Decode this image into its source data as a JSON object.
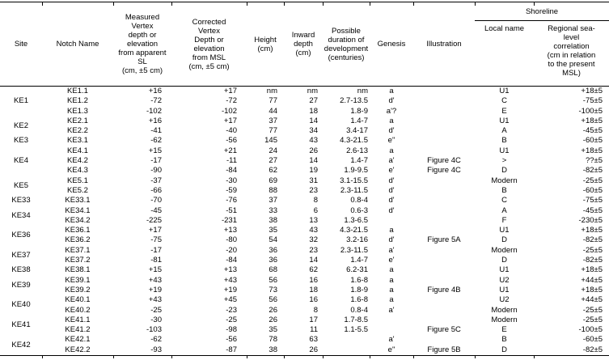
{
  "table": {
    "headers": {
      "site": "Site",
      "notch_name": "Notch Name",
      "measured": "Measured\nVertex\ndepth or\nelevation\nfrom apparent\nSL\n(cm, ±5 cm)",
      "corrected": "Corrected\nVertex\nDepth or\nelevation\nfrom MSL\n(cm, ±5 cm)",
      "height": "Height\n(cm)",
      "inward": "Inward\ndepth\n(cm)",
      "duration": "Possible\nduration of\ndevelopment\n(centuries)",
      "genesis": "Genesis",
      "illustration": "Illustration",
      "shoreline": "Shoreline",
      "local_name": "Local name",
      "regional": "Regional sea-\nlevel\ncorrelation\n(cm in relation\nto the present\nMSL)"
    },
    "groups": [
      {
        "site": "KE1",
        "rows": [
          {
            "notch": "KE1.1",
            "measured": "+16",
            "corrected": "+17",
            "height": "nm",
            "inward": "nm",
            "duration": "nm",
            "genesis": "a",
            "illustration": "",
            "local": "U1",
            "regional": "+18±5"
          },
          {
            "notch": "KE1.2",
            "measured": "-72",
            "corrected": "-72",
            "height": "77",
            "inward": "27",
            "duration": "2.7-13.5",
            "genesis": "d'",
            "illustration": "",
            "local": "C",
            "regional": "-75±5"
          },
          {
            "notch": "KE1.3",
            "measured": "-102",
            "corrected": "-102",
            "height": "44",
            "inward": "18",
            "duration": "1.8-9",
            "genesis": "a'?",
            "illustration": "",
            "local": "E",
            "regional": "-100±5"
          }
        ]
      },
      {
        "site": "KE2",
        "rows": [
          {
            "notch": "KE2.1",
            "measured": "+16",
            "corrected": "+17",
            "height": "37",
            "inward": "14",
            "duration": "1.4-7",
            "genesis": "a",
            "illustration": "",
            "local": "U1",
            "regional": "+18±5"
          },
          {
            "notch": "KE2.2",
            "measured": "-41",
            "corrected": "-40",
            "height": "77",
            "inward": "34",
            "duration": "3.4-17",
            "genesis": "d'",
            "illustration": "",
            "local": "A",
            "regional": "-45±5"
          }
        ]
      },
      {
        "site": "KE3",
        "rows": [
          {
            "notch": "KE3.1",
            "measured": "-62",
            "corrected": "-56",
            "height": "145",
            "inward": "43",
            "duration": "4.3-21.5",
            "genesis": "e\"",
            "illustration": "",
            "local": "B",
            "regional": "-60±5"
          }
        ]
      },
      {
        "site": "KE4",
        "rows": [
          {
            "notch": "KE4.1",
            "measured": "+15",
            "corrected": "+21",
            "height": "24",
            "inward": "26",
            "duration": "2.6-13",
            "genesis": "a",
            "illustration": "",
            "local": "U1",
            "regional": "+18±5"
          },
          {
            "notch": "KE4.2",
            "measured": "-17",
            "corrected": "-11",
            "height": "27",
            "inward": "14",
            "duration": "1.4-7",
            "genesis": "a'",
            "illustration": "Figure 4C",
            "local": ">",
            "regional": "??±5"
          },
          {
            "notch": "KE4.3",
            "measured": "-90",
            "corrected": "-84",
            "height": "62",
            "inward": "19",
            "duration": "1.9-9.5",
            "genesis": "e'",
            "illustration": "Figure 4C",
            "local": "D",
            "regional": "-82±5"
          }
        ]
      },
      {
        "site": "KE5",
        "rows": [
          {
            "notch": "KE5.1",
            "measured": "-37",
            "corrected": "-30",
            "height": "69",
            "inward": "31",
            "duration": "3.1-15.5",
            "genesis": "d'",
            "illustration": "",
            "local": "Modern",
            "regional": "-25±5"
          },
          {
            "notch": "KE5.2",
            "measured": "-66",
            "corrected": "-59",
            "height": "88",
            "inward": "23",
            "duration": "2.3-11.5",
            "genesis": "d'",
            "illustration": "",
            "local": "B",
            "regional": "-60±5"
          }
        ]
      },
      {
        "site": "KE33",
        "rows": [
          {
            "notch": "KE33.1",
            "measured": "-70",
            "corrected": "-76",
            "height": "37",
            "inward": "8",
            "duration": "0.8-4",
            "genesis": "d'",
            "illustration": "",
            "local": "C",
            "regional": "-75±5"
          }
        ]
      },
      {
        "site": "KE34",
        "rows": [
          {
            "notch": "KE34.1",
            "measured": "-45",
            "corrected": "-51",
            "height": "33",
            "inward": "6",
            "duration": "0.6-3",
            "genesis": "d'",
            "illustration": "",
            "local": "A",
            "regional": "-45±5"
          },
          {
            "notch": "KE34.2",
            "measured": "-225",
            "corrected": "-231",
            "height": "38",
            "inward": "13",
            "duration": "1.3-6.5",
            "genesis": "",
            "illustration": "",
            "local": "F",
            "regional": "-230±5"
          }
        ]
      },
      {
        "site": "KE36",
        "rows": [
          {
            "notch": "KE36.1",
            "measured": "+17",
            "corrected": "+13",
            "height": "35",
            "inward": "43",
            "duration": "4.3-21.5",
            "genesis": "a",
            "illustration": "",
            "local": "U1",
            "regional": "+18±5"
          },
          {
            "notch": "KE36.2",
            "measured": "-75",
            "corrected": "-80",
            "height": "54",
            "inward": "32",
            "duration": "3.2-16",
            "genesis": "d'",
            "illustration": "Figure 5A",
            "local": "D",
            "regional": "-82±5"
          }
        ]
      },
      {
        "site": "KE37",
        "rows": [
          {
            "notch": "KE37.1",
            "measured": "-17",
            "corrected": "-20",
            "height": "36",
            "inward": "23",
            "duration": "2.3-11.5",
            "genesis": "a'",
            "illustration": "",
            "local": "Modern",
            "regional": "-25±5"
          },
          {
            "notch": "KE37.2",
            "measured": "-81",
            "corrected": "-84",
            "height": "36",
            "inward": "14",
            "duration": "1.4-7",
            "genesis": "e'",
            "illustration": "",
            "local": "D",
            "regional": "-82±5"
          }
        ]
      },
      {
        "site": "KE38",
        "rows": [
          {
            "notch": "KE38.1",
            "measured": "+15",
            "corrected": "+13",
            "height": "68",
            "inward": "62",
            "duration": "6.2-31",
            "genesis": "a",
            "illustration": "",
            "local": "U1",
            "regional": "+18±5"
          }
        ]
      },
      {
        "site": "KE39",
        "rows": [
          {
            "notch": "KE39.1",
            "measured": "+43",
            "corrected": "+43",
            "height": "56",
            "inward": "16",
            "duration": "1.6-8",
            "genesis": "a",
            "illustration": "",
            "local": "U2",
            "regional": "+44±5"
          },
          {
            "notch": "KE39.2",
            "measured": "+19",
            "corrected": "+19",
            "height": "73",
            "inward": "18",
            "duration": "1.8-9",
            "genesis": "a",
            "illustration": "Figure 4B",
            "local": "U1",
            "regional": "+18±5"
          }
        ]
      },
      {
        "site": "KE40",
        "rows": [
          {
            "notch": "KE40.1",
            "measured": "+43",
            "corrected": "+45",
            "height": "56",
            "inward": "16",
            "duration": "1.6-8",
            "genesis": "a",
            "illustration": "",
            "local": "U2",
            "regional": "+44±5"
          },
          {
            "notch": "KE40.2",
            "measured": "-25",
            "corrected": "-23",
            "height": "26",
            "inward": "8",
            "duration": "0.8-4",
            "genesis": "a'",
            "illustration": "",
            "local": "Modern",
            "regional": "-25±5"
          }
        ]
      },
      {
        "site": "KE41",
        "rows": [
          {
            "notch": "KE41.1",
            "measured": "-30",
            "corrected": "-25",
            "height": "26",
            "inward": "17",
            "duration": "1.7-8.5",
            "genesis": "",
            "illustration": "",
            "local": "Modern",
            "regional": "-25±5"
          },
          {
            "notch": "KE41.2",
            "measured": "-103",
            "corrected": "-98",
            "height": "35",
            "inward": "11",
            "duration": "1.1-5.5",
            "genesis": "",
            "illustration": "Figure 5C",
            "local": "E",
            "regional": "-100±5"
          }
        ]
      },
      {
        "site": "KE42",
        "rows": [
          {
            "notch": "KE42.1",
            "measured": "-62",
            "corrected": "-56",
            "height": "78",
            "inward": "63",
            "duration": "",
            "genesis": "a'",
            "illustration": "",
            "local": "B",
            "regional": "-60±5"
          },
          {
            "notch": "KE42.2",
            "measured": "-93",
            "corrected": "-87",
            "height": "38",
            "inward": "26",
            "duration": "",
            "genesis": "e\"",
            "illustration": "Figure 5B",
            "local": "D",
            "regional": "-82±5"
          }
        ]
      }
    ]
  }
}
